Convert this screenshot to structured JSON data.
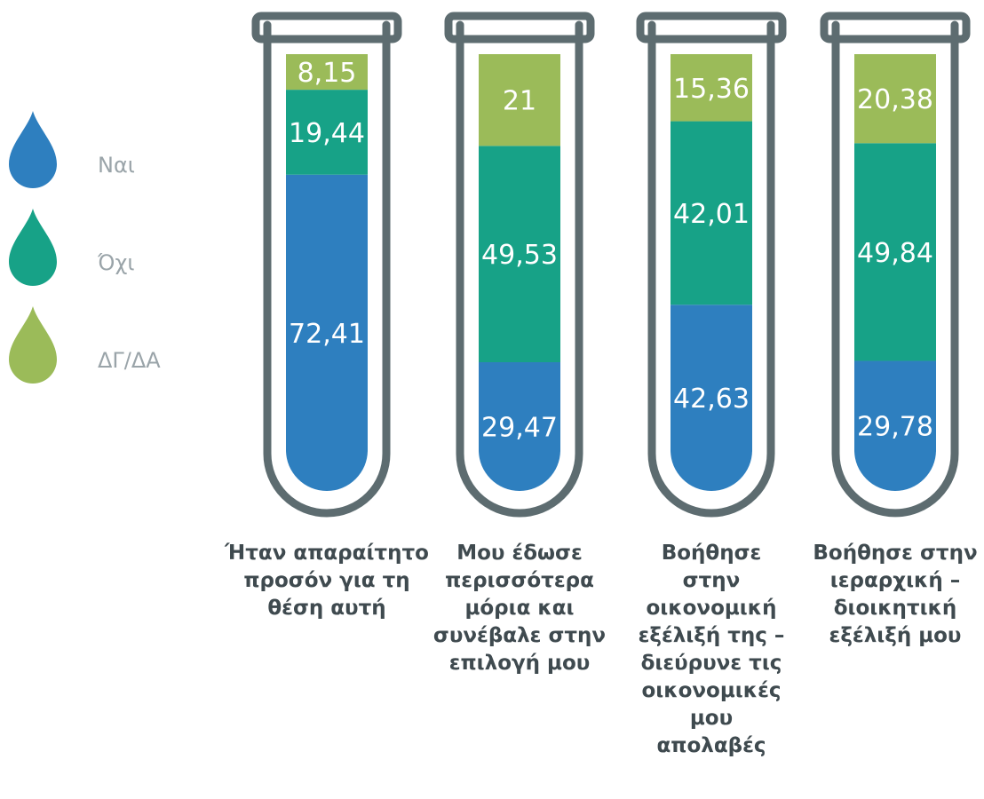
{
  "chart_data": {
    "type": "bar",
    "stacked": true,
    "percent": true,
    "categories": [
      "Ήταν απαραίτητο προσόν για τη θέση αυτή",
      "Μου έδωσε περισσότερα μόρια και συνέβαλε στην επιλογή μου",
      "Βοήθησε στην οικονομική εξέλιξή της – διεύρυνε τις οικονομικές μου απολαβές",
      "Βοήθησε στην ιεραρχική – διοικητική εξέλιξή μου"
    ],
    "category_lines": [
      [
        "Ήταν απαραίτητο",
        "προσόν για τη",
        "θέση αυτή"
      ],
      [
        "Μου έδωσε",
        "περισσότερα",
        "μόρια και",
        "συνέβαλε στην",
        "επιλογή μου"
      ],
      [
        "Βοήθησε",
        "στην",
        "οικονομική",
        "εξέλιξή της –",
        "διεύρυνε τις",
        "οικονομικές",
        "μου",
        "απολαβές"
      ],
      [
        "Βοήθησε στην",
        "ιεραρχική –",
        "διοικητική",
        "εξέλιξή μου"
      ]
    ],
    "series": [
      {
        "name": "Ναι",
        "color": "#2e7fbf",
        "values": [
          72.41,
          29.47,
          42.63,
          29.78
        ],
        "labels": [
          "72,41",
          "29,47",
          "42,63",
          "29,78"
        ]
      },
      {
        "name": "Όχι",
        "color": "#17a287",
        "values": [
          19.44,
          49.53,
          42.01,
          49.84
        ],
        "labels": [
          "19,44",
          "49,53",
          "42,01",
          "49,84"
        ]
      },
      {
        "name": "ΔΓ/ΔΑ",
        "color": "#9bbb59",
        "values": [
          8.15,
          21,
          15.36,
          20.38
        ],
        "labels": [
          "8,15",
          "21",
          "15,36",
          "20,38"
        ]
      }
    ],
    "ylim": [
      0,
      100
    ],
    "legend_position": "left",
    "colors": {
      "tube_outline": "#5d6c70",
      "category_text": "#3f4a4f",
      "legend_text": "#9aa4a9",
      "value_text": "#ffffff"
    }
  }
}
